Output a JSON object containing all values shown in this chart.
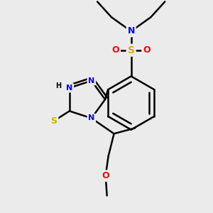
{
  "bg_color": "#ebebeb",
  "atom_colors": {
    "C": "#000000",
    "N": "#0000ff",
    "O": "#ff0000",
    "S_thiol": "#c8b400",
    "S_sulfonyl": "#e8a800",
    "H": "#000000"
  },
  "bond_color": "#000000",
  "bond_width": 1.8,
  "figsize": [
    3.0,
    3.0
  ],
  "dpi": 100
}
